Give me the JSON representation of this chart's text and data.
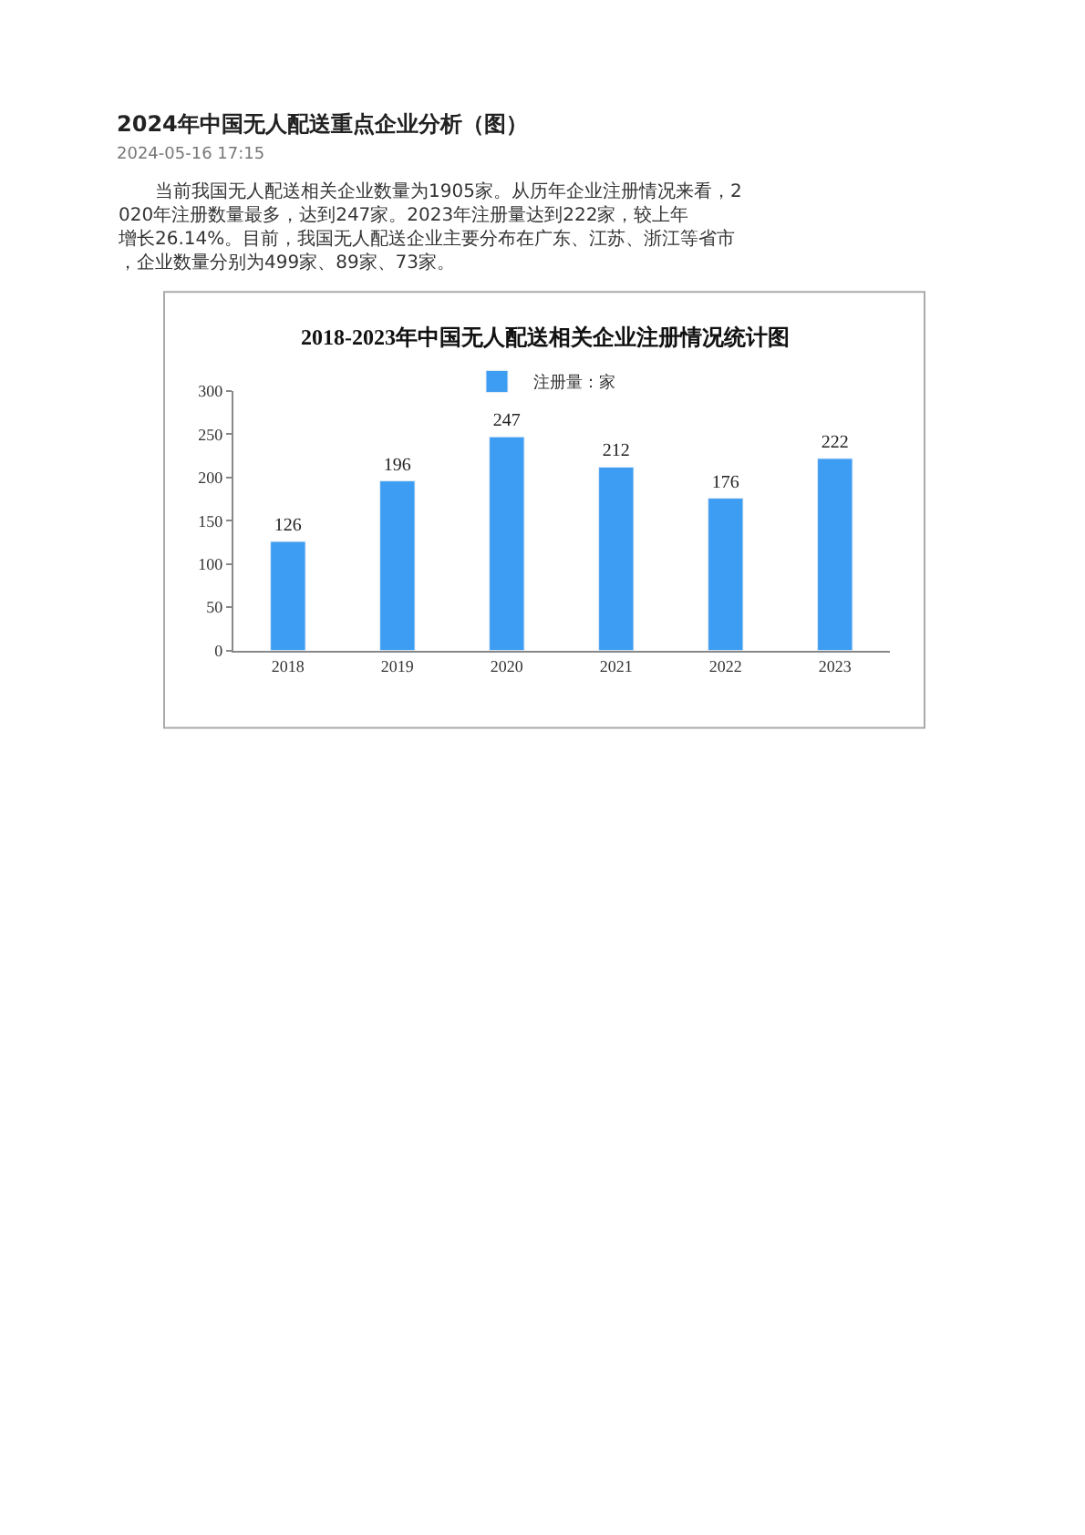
{
  "chart_data": {
    "type": "bar",
    "title": "2018-2023年中国无人配送相关企业注册情况统计图",
    "categories": [
      "2018",
      "2019",
      "2020",
      "2021",
      "2022",
      "2023"
    ],
    "series": [
      {
        "name": "注册量：家",
        "color": "#3d9df2",
        "values": [
          126,
          196,
          247,
          212,
          176,
          222
        ]
      }
    ],
    "ylim": [
      0,
      300
    ],
    "yticks": [
      0,
      50,
      100,
      150,
      200,
      250,
      300
    ],
    "data_labels": true,
    "legend": "top",
    "annotations": [
      "2024年中国无人配送重点企业分析（图）",
      "2024-05-16 17:15",
      "当前我国无人配送相关企业数量为1905家。从历年企业注册情况来看，2020年注册数量最多，达到247家。2023年注册量达到222家，较上年增长26.14%。目前，我国无人配送企业主要分布在广东、江苏、浙江等省市，企业数量分别为499家、89家、73家。"
    ]
  }
}
